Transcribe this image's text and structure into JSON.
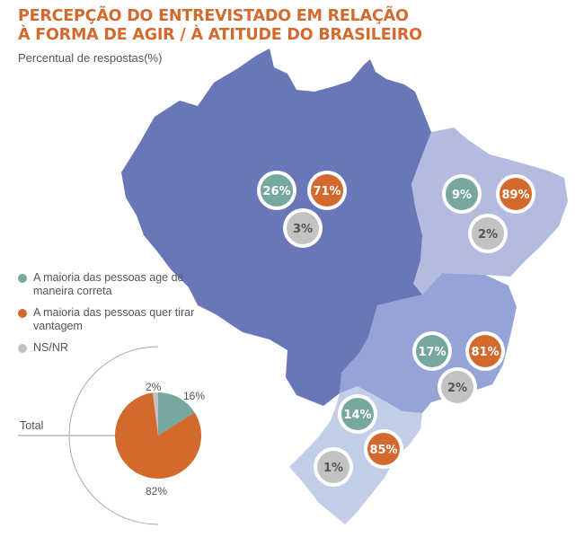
{
  "title": {
    "line1": "PERCEPÇÃO DO ENTREVISTADO EM RELAÇÃO",
    "line2": "À FORMA DE AGIR / À ATITUDE DO BRASILEIRO"
  },
  "subtitle": "Percentual de respostas(%)",
  "colors": {
    "correct": "#76a8a0",
    "advantage": "#d4692e",
    "nsnr": "#c2c2c2",
    "north": "#6976b7",
    "northeast": "#b3bbe0",
    "southeast": "#95a3d7",
    "south": "#c2cde8"
  },
  "legend": [
    {
      "label": "A maioria das pessoas age de maneira correta",
      "color": "#76a8a0"
    },
    {
      "label": "A maioria das pessoas quer tirar vantagem",
      "color": "#d4692e"
    },
    {
      "label": "NS/NR",
      "color": "#c2c2c2"
    }
  ],
  "regions": {
    "north": {
      "correct": "26%",
      "advantage": "71%",
      "nsnr": "3%"
    },
    "northeast": {
      "correct": "9%",
      "advantage": "89%",
      "nsnr": "2%"
    },
    "southeast": {
      "correct": "17%",
      "advantage": "81%",
      "nsnr": "2%"
    },
    "south": {
      "correct": "14%",
      "advantage": "85%",
      "nsnr": "1%"
    }
  },
  "total": {
    "label": "Total",
    "correct_label": "16%",
    "advantage_label": "82%",
    "nsnr_label": "2%"
  },
  "chart_data": {
    "type": "pie",
    "categories": [
      "A maioria das pessoas age de maneira correta",
      "A maioria das pessoas quer tirar vantagem",
      "NS/NR"
    ],
    "values": [
      16,
      82,
      2
    ]
  }
}
